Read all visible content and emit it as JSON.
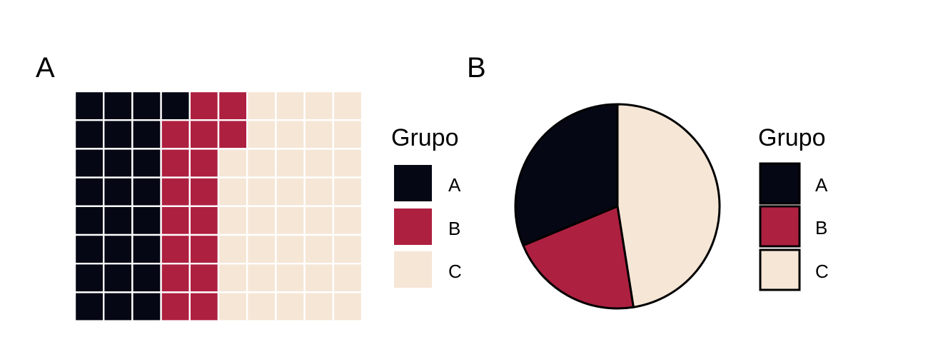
{
  "chart_data": [
    {
      "type": "waffle",
      "panel_label": "A",
      "legend_title": "Grupo",
      "grid": {
        "columns": 10,
        "rows": 8,
        "fill_order": "column-major, top to bottom"
      },
      "categories": [
        "A",
        "B",
        "C"
      ],
      "values": [
        25,
        17,
        38
      ],
      "colors": [
        "#050814",
        "#ae2040",
        "#f5e6d6"
      ]
    },
    {
      "type": "pie",
      "panel_label": "B",
      "legend_title": "Grupo",
      "categories": [
        "A",
        "B",
        "C"
      ],
      "values": [
        31.25,
        21.25,
        47.5
      ],
      "colors": [
        "#050814",
        "#ae2040",
        "#f5e6d6"
      ]
    }
  ]
}
